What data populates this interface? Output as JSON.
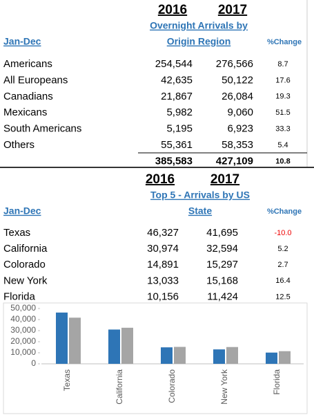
{
  "section1": {
    "years": [
      "2016",
      "2017"
    ],
    "title_lines": [
      "Overnight Arrivals by",
      "Origin Region"
    ],
    "period": "Jan-Dec",
    "change_header": "%Change",
    "rows": [
      [
        "Americans",
        "254,544",
        "276,566",
        "8.7"
      ],
      [
        "All Europeans",
        "42,635",
        "50,122",
        "17.6"
      ],
      [
        "Canadians",
        "21,867",
        "26,084",
        "19.3"
      ],
      [
        "Mexicans",
        "5,982",
        "9,060",
        "51.5"
      ],
      [
        "South Americans",
        "5,195",
        "6,923",
        "33.3"
      ],
      [
        "Others",
        "55,361",
        "58,353",
        "5.4"
      ]
    ],
    "total": [
      "385,583",
      "427,109",
      "10.8"
    ]
  },
  "section2": {
    "years": [
      "2016",
      "2017"
    ],
    "title_lines": [
      "Top 5 - Arrivals by US",
      "State"
    ],
    "period": "Jan-Dec",
    "change_header": "%Change",
    "rows": [
      [
        "Texas",
        "46,327",
        "41,695",
        "-10.0"
      ],
      [
        "California",
        "30,974",
        "32,594",
        "5.2"
      ],
      [
        "Colorado",
        "14,891",
        "15,297",
        "2.7"
      ],
      [
        "New York",
        "13,033",
        "15,168",
        "16.4"
      ],
      [
        "Florida",
        "10,156",
        "11,424",
        "12.5"
      ]
    ]
  },
  "chart_data": {
    "type": "bar",
    "categories": [
      "Texas",
      "California",
      "Colorado",
      "New York",
      "Florida"
    ],
    "series": [
      {
        "color": "#2e75b6",
        "values": [
          46327,
          30974,
          14891,
          13033,
          10156
        ]
      },
      {
        "color": "#a5a5a5",
        "values": [
          41695,
          32594,
          15297,
          15168,
          11424
        ]
      }
    ],
    "ylim": [
      0,
      50000
    ],
    "yticks": [
      0,
      {
        "value": 10000,
        "label": "10,000"
      },
      {
        "value": 20000,
        "label": "20,000"
      },
      {
        "value": 30000,
        "label": "30,000"
      },
      {
        "value": 40000,
        "label": "40,000"
      },
      {
        "value": 50000,
        "label": "50,000"
      }
    ],
    "grid": false
  }
}
